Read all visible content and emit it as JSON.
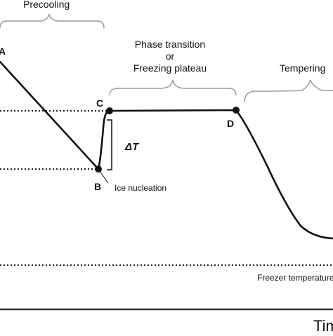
{
  "phases": {
    "precooling": "Precooling",
    "transition_line1": "Phase transition",
    "transition_line2": "or",
    "transition_line3": "Freezing plateau",
    "tempering": "Tempering"
  },
  "points": {
    "a": "A",
    "b": "B",
    "c": "C",
    "d": "D"
  },
  "annotations": {
    "delta_t": "ΔT",
    "ice_nucleation": "Ice nucleation",
    "freezer_temperature": "Freezer temperature"
  },
  "axis": {
    "x_title": "Time"
  },
  "colors": {
    "curve": "#111111",
    "bracket": "#9a9a9a",
    "dotted": "#222222",
    "axis": "#333333"
  }
}
